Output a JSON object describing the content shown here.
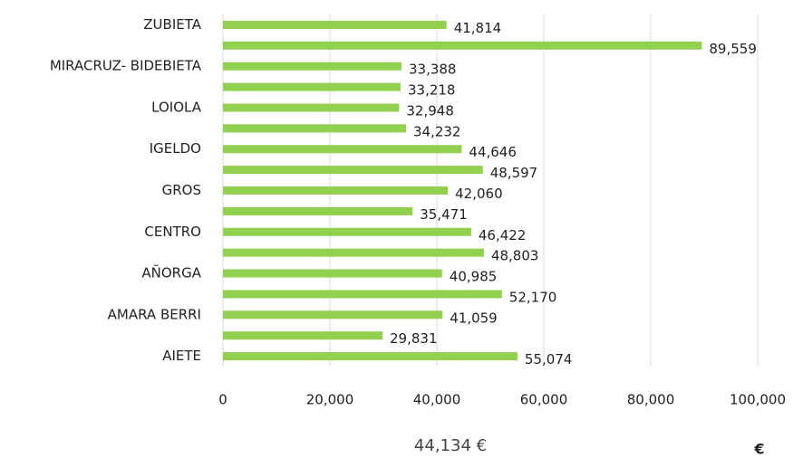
{
  "chart_data": {
    "type": "bar",
    "orientation": "horizontal",
    "categories": [
      "ZUBIETA",
      null,
      "MIRACRUZ- BIDEBIETA",
      null,
      "LOIOLA",
      null,
      "IGELDO",
      null,
      "GROS",
      null,
      "CENTRO",
      null,
      "AÑORGA",
      null,
      "AMARA BERRI",
      null,
      "AIETE"
    ],
    "values": [
      41814,
      89559,
      33388,
      33218,
      32948,
      34232,
      44646,
      48597,
      42060,
      35471,
      46422,
      48803,
      40985,
      52170,
      41059,
      29831,
      55074
    ],
    "value_labels": [
      "41,814",
      "89,559",
      "33,388",
      "33,218",
      "32,948",
      "34,232",
      "44,646",
      "48,597",
      "42,060",
      "35,471",
      "46,422",
      "48,803",
      "40,985",
      "52,170",
      "41,059",
      "29,831",
      "55,074"
    ],
    "color": "#92d050",
    "xlim": [
      0,
      100000
    ],
    "xticks": [
      0,
      {
        "value": 20000,
        "label": "20,000"
      },
      {
        "value": 40000,
        "label": "40,000"
      },
      {
        "value": 60000,
        "label": "60,000"
      },
      {
        "value": 80000,
        "label": "80,000"
      },
      {
        "value": 100000,
        "label": "100,000"
      }
    ],
    "grid": true,
    "x_label": "€",
    "annotation": "44,134 €"
  }
}
